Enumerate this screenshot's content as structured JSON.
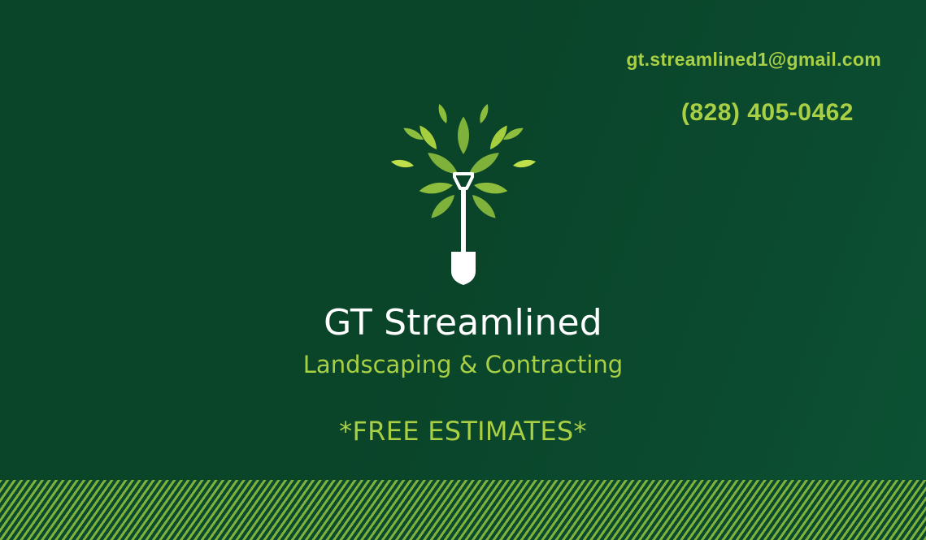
{
  "contact": {
    "email": "gt.streamlined1@gmail.com",
    "phone": "(828) 405-0462"
  },
  "brand": {
    "name": "GT Streamlined",
    "tagline": "Landscaping & Contracting",
    "logo_icon": "tree-shovel-icon"
  },
  "promo": {
    "text": "*FREE ESTIMATES*"
  },
  "colors": {
    "background": "#0b4529",
    "accent": "#a9cf45",
    "title": "#ffffff",
    "stripe": "#7fb23a"
  }
}
